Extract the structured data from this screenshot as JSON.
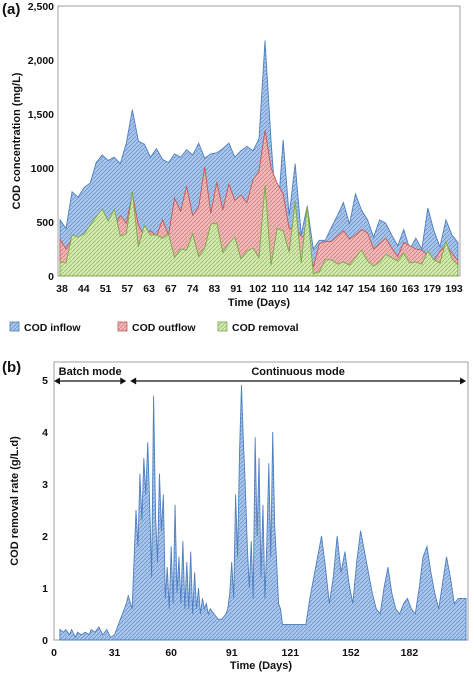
{
  "panels": {
    "a": "(a)",
    "b": "(b)"
  },
  "chart_data": [
    {
      "type": "area",
      "panel": "(a)",
      "xlabel": "Time (Days)",
      "ylabel": "COD concentration (mg/L)",
      "ylim": [
        0,
        2500
      ],
      "yticks": [
        "0",
        "500",
        "1000",
        "1,500",
        "2,000",
        "2,500"
      ],
      "ytick_values": [
        0,
        500,
        1000,
        1500,
        2000,
        2500
      ],
      "xtick_labels": [
        "38",
        "44",
        "51",
        "57",
        "63",
        "67",
        "74",
        "83",
        "91",
        "102",
        "110",
        "114",
        "142",
        "147",
        "154",
        "160",
        "163",
        "179",
        "193"
      ],
      "legend": "bottom",
      "series": [
        {
          "name": "COD inflow",
          "color": "#8eb4e3",
          "values": [
            520,
            440,
            780,
            730,
            820,
            860,
            1050,
            1120,
            1070,
            1100,
            1040,
            1230,
            1540,
            1250,
            1220,
            1100,
            1180,
            1080,
            1050,
            1130,
            1100,
            1170,
            1120,
            1230,
            1090,
            1130,
            1140,
            1180,
            1230,
            1100,
            1160,
            1200,
            1160,
            1270,
            2180,
            1250,
            480,
            1260,
            560,
            1040,
            380,
            650,
            250,
            330,
            330,
            450,
            560,
            680,
            480,
            760,
            610,
            520,
            360,
            520,
            490,
            380,
            280,
            430,
            250,
            350,
            250,
            630,
            420,
            270,
            520,
            380,
            310
          ]
        },
        {
          "name": "COD outflow",
          "color": "#e6a6a6",
          "values": [
            340,
            250,
            350,
            280,
            360,
            400,
            480,
            520,
            430,
            450,
            560,
            490,
            760,
            470,
            370,
            420,
            370,
            520,
            380,
            720,
            600,
            830,
            560,
            640,
            1010,
            580,
            870,
            610,
            850,
            700,
            750,
            680,
            890,
            970,
            1350,
            1000,
            860,
            760,
            440,
            450,
            370,
            360,
            80,
            300,
            320,
            320,
            370,
            420,
            340,
            380,
            430,
            400,
            250,
            300,
            350,
            260,
            180,
            310,
            280,
            250,
            240,
            190,
            140,
            230,
            290,
            210,
            140
          ]
        },
        {
          "name": "COD removal",
          "color": "#c3dd9c",
          "values": [
            130,
            120,
            380,
            360,
            390,
            470,
            550,
            620,
            510,
            620,
            370,
            390,
            780,
            270,
            470,
            380,
            380,
            350,
            390,
            170,
            250,
            240,
            390,
            180,
            260,
            480,
            490,
            220,
            300,
            360,
            160,
            230,
            260,
            170,
            840,
            100,
            440,
            420,
            220,
            690,
            120,
            650,
            20,
            40,
            150,
            150,
            110,
            130,
            100,
            170,
            240,
            140,
            90,
            130,
            200,
            170,
            140,
            210,
            120,
            130,
            110,
            230,
            150,
            120,
            320,
            160,
            100
          ]
        }
      ]
    },
    {
      "type": "area",
      "panel": "(b)",
      "xlabel": "Time (Days)",
      "ylabel": "COD removal rate (g/L.d)",
      "ylim": [
        0,
        5
      ],
      "yticks": [
        "0",
        "1",
        "2",
        "3",
        "4",
        "5"
      ],
      "ytick_values": [
        0,
        1,
        2,
        3,
        4,
        5
      ],
      "xlim": [
        0,
        212
      ],
      "xticks": [
        "0",
        "31",
        "60",
        "91",
        "121",
        "152",
        "182"
      ],
      "xtick_values": [
        0,
        31,
        60,
        91,
        121,
        152,
        182
      ],
      "annotations": {
        "batch": "Batch mode",
        "continuous": "Continuous mode"
      },
      "batch_range": [
        0,
        37
      ],
      "continuous_range": [
        39,
        211
      ],
      "series": [
        {
          "name": "COD removal rate",
          "color": "#8eb4e3",
          "x": [
            3,
            5,
            6,
            8,
            9,
            11,
            12,
            14,
            16,
            18,
            19,
            21,
            23,
            25,
            27,
            29,
            31,
            33,
            35,
            37,
            38,
            40,
            42,
            43,
            44,
            45,
            46,
            47,
            48,
            49,
            50,
            51,
            52,
            53,
            54,
            55,
            56,
            57,
            58,
            59,
            60,
            61,
            62,
            63,
            64,
            65,
            66,
            67,
            68,
            69,
            70,
            71,
            72,
            73,
            74,
            75,
            76,
            77,
            78,
            79,
            80,
            82,
            84,
            86,
            88,
            89,
            90,
            91,
            92,
            93,
            94,
            95,
            96,
            97,
            98,
            99,
            100,
            101,
            102,
            103,
            104,
            105,
            106,
            107,
            108,
            109,
            110,
            111,
            112,
            113,
            114,
            115,
            116,
            117,
            118,
            119,
            120,
            121,
            123,
            125,
            127,
            129,
            131,
            133,
            135,
            137,
            139,
            141,
            143,
            145,
            147,
            149,
            151,
            153,
            155,
            157,
            159,
            161,
            163,
            165,
            167,
            169,
            171,
            173,
            175,
            177,
            179,
            181,
            183,
            185,
            187,
            189,
            191,
            193,
            195,
            197,
            199,
            201,
            203,
            205,
            207,
            209,
            211
          ],
          "y": [
            0.2,
            0.15,
            0.2,
            0.1,
            0.2,
            0.05,
            0.15,
            0.1,
            0.15,
            0.1,
            0.2,
            0.15,
            0.25,
            0.1,
            0.2,
            0.05,
            0.1,
            0.3,
            0.5,
            0.7,
            0.85,
            0.6,
            2.5,
            1.8,
            3.2,
            2.3,
            3.5,
            2.8,
            3.8,
            2.6,
            1.2,
            4.7,
            2.4,
            1.5,
            3.2,
            2.1,
            2.8,
            0.8,
            1.4,
            0.6,
            1.8,
            0.7,
            2.6,
            0.9,
            1.6,
            0.7,
            1.9,
            0.6,
            1.5,
            0.6,
            1.7,
            0.5,
            1.3,
            0.6,
            1.0,
            0.5,
            0.8,
            0.6,
            0.7,
            0.5,
            0.6,
            0.5,
            0.4,
            0.4,
            0.5,
            0.6,
            0.9,
            1.5,
            0.8,
            2.8,
            1.6,
            3.6,
            4.9,
            3.8,
            2.9,
            1.8,
            1.0,
            1.9,
            0.8,
            3.9,
            2.0,
            3.5,
            1.2,
            2.6,
            0.8,
            1.9,
            3.4,
            1.6,
            4.0,
            2.2,
            1.5,
            0.7,
            0.6,
            0.3,
            0.3,
            0.3,
            0.3,
            0.3,
            0.3,
            0.3,
            0.3,
            0.3,
            0.8,
            1.2,
            1.6,
            2.0,
            1.4,
            0.7,
            1.2,
            2.0,
            1.3,
            1.7,
            1.1,
            0.7,
            1.5,
            2.1,
            1.7,
            1.3,
            0.9,
            0.6,
            0.5,
            1.0,
            1.4,
            0.9,
            0.6,
            0.5,
            0.7,
            0.8,
            0.6,
            0.5,
            1.0,
            1.6,
            1.8,
            1.3,
            0.9,
            0.6,
            1.1,
            1.6,
            1.2,
            0.7,
            0.8,
            0.8,
            0.8
          ]
        }
      ]
    }
  ]
}
